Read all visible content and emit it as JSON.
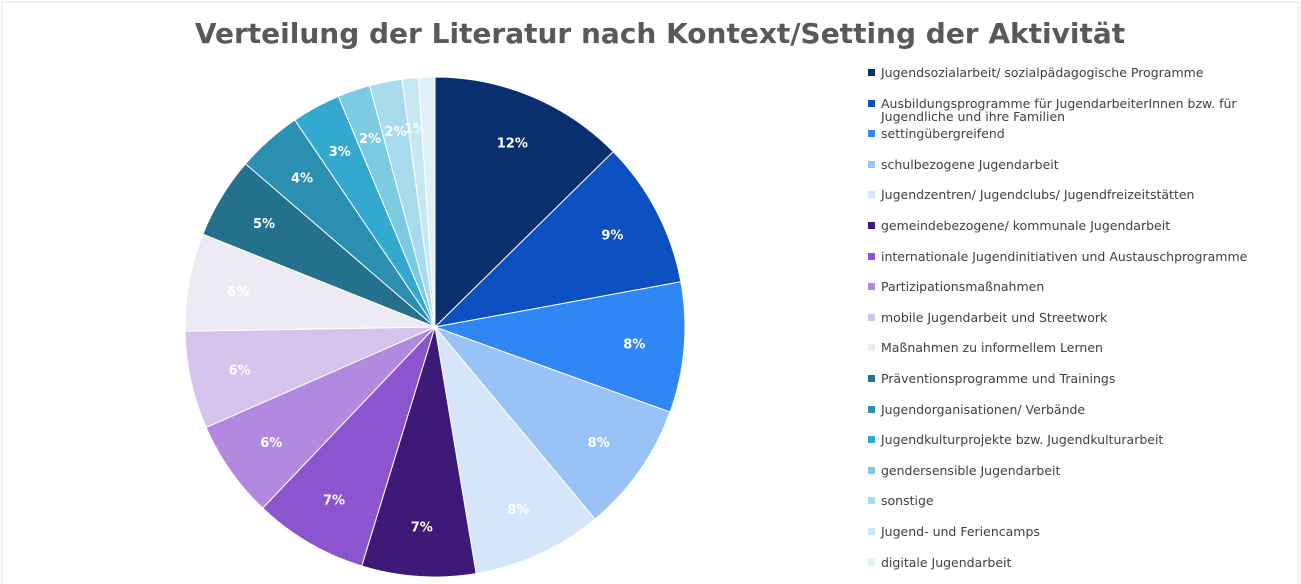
{
  "chart_data": {
    "type": "pie",
    "title": "Verteilung der Literatur nach Kontext/Setting der Aktivität",
    "categories": [
      "Jugendsozialarbeit/ sozialpädagogische Programme",
      "Ausbildungsprogramme für JugendarbeiterInnen bzw. für Jugendliche und ihre Familien",
      "settingübergreifend",
      "schulbezogene Jugendarbeit",
      "Jugendzentren/ Jugendclubs/ Jugendfreizeitstätten",
      "gemeindebezogene/ kommunale Jugendarbeit",
      "internationale Jugendinitiativen und Austauschprogramme",
      "Partizipationsmaßnahmen",
      "mobile Jugendarbeit und Streetwork",
      "Maßnahmen zu informellem Lernen",
      "Präventionsprogramme und Trainings",
      "Jugendorganisationen/ Verbände",
      "Jugendkulturprojekte bzw. Jugendkulturarbeit",
      "gendersensible Jugendarbeit",
      "sonstige",
      "Jugend- und Feriencamps",
      "digitale Jugendarbeit"
    ],
    "values": [
      12,
      9,
      8,
      8,
      8,
      7,
      7,
      6,
      6,
      6,
      5,
      4,
      3,
      2,
      2,
      1,
      1
    ],
    "value_labels": [
      "12%",
      "9%",
      "8%",
      "8%",
      "8%",
      "7%",
      "7%",
      "6%",
      "6%",
      "6%",
      "5%",
      "4%",
      "3%",
      "2%",
      "2%",
      "1%",
      null
    ],
    "colors": [
      "#0a2f6e",
      "#0c4fc0",
      "#2f86f5",
      "#99c2f7",
      "#d5e5fa",
      "#3e1a78",
      "#8c55cf",
      "#b389e0",
      "#d6c4ee",
      "#eceaf3",
      "#23718d",
      "#2a8fb0",
      "#34a9cf",
      "#7ccbe3",
      "#a8dced",
      "#c5e8f3",
      "#ddf1f7"
    ],
    "legend": "right"
  }
}
